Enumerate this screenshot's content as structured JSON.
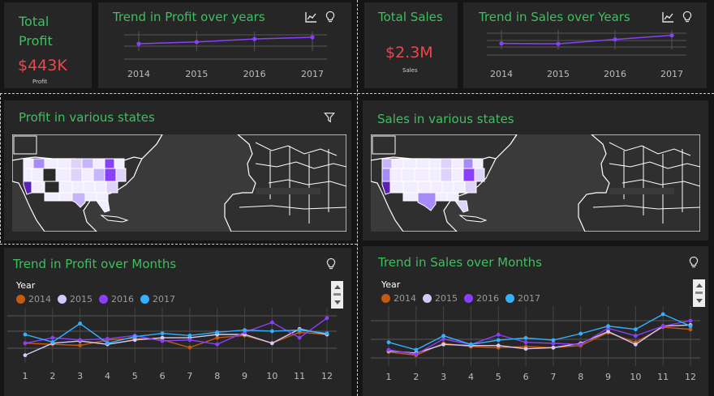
{
  "profit_kpi": {
    "title_line1": "Total",
    "title_line2": "Profit",
    "value": "$443K",
    "sub": "Profit"
  },
  "sales_kpi": {
    "title": "Total Sales",
    "value": "$2.3M",
    "sub": "Sales"
  },
  "profit_years": {
    "title": "Trend in Profit over years",
    "icons": [
      "line-chart-icon",
      "lightbulb-icon"
    ],
    "chart_data": {
      "type": "line",
      "categories": [
        "2014",
        "2015",
        "2016",
        "2017"
      ],
      "values": [
        49.5,
        61.6,
        81.8,
        93.4
      ],
      "color": "#8a3ffc"
    }
  },
  "sales_years": {
    "title": "Trend in Sales over Years",
    "icons": [
      "line-chart-icon",
      "lightbulb-icon"
    ],
    "chart_data": {
      "type": "line",
      "categories": [
        "2014",
        "2015",
        "2016",
        "2017"
      ],
      "values": [
        484,
        471,
        609,
        733
      ],
      "color": "#8a3ffc"
    }
  },
  "profit_states": {
    "title": "Profit in various states",
    "icons": [
      "filter-icon"
    ]
  },
  "sales_states": {
    "title": "Sales in various states"
  },
  "profit_months": {
    "title": "Trend in Profit over Months",
    "icons": [
      "lightbulb-icon"
    ],
    "legend_title": "Year",
    "chart_data": {
      "type": "line",
      "categories": [
        "1",
        "2",
        "3",
        "4",
        "5",
        "6",
        "7",
        "8",
        "9",
        "10",
        "11",
        "12"
      ],
      "series": [
        {
          "name": "2014",
          "color": "#c55a11",
          "values": [
            24,
            22,
            20,
            30,
            33,
            30,
            16,
            34,
            38,
            24,
            44,
            40
          ]
        },
        {
          "name": "2015",
          "color": "#d6c8f7",
          "values": [
            2,
            24,
            28,
            22,
            30,
            34,
            34,
            40,
            40,
            24,
            50,
            40
          ]
        },
        {
          "name": "2016",
          "color": "#8a3ffc",
          "values": [
            24,
            34,
            30,
            32,
            38,
            28,
            30,
            22,
            44,
            62,
            34,
            70
          ]
        },
        {
          "name": "2017",
          "color": "#33b1ff",
          "values": [
            40,
            26,
            60,
            24,
            36,
            42,
            38,
            44,
            48,
            46,
            48,
            42
          ]
        }
      ]
    }
  },
  "sales_months": {
    "title": "Trend in Sales over Months",
    "icons": [
      "lightbulb-icon"
    ],
    "legend_title": "Year",
    "chart_data": {
      "type": "line",
      "categories": [
        "1",
        "2",
        "3",
        "4",
        "5",
        "6",
        "7",
        "8",
        "9",
        "10",
        "11",
        "12"
      ],
      "series": [
        {
          "name": "2014",
          "color": "#c55a11",
          "values": [
            14,
            8,
            30,
            24,
            22,
            24,
            22,
            26,
            50,
            32,
            60,
            56
          ]
        },
        {
          "name": "2015",
          "color": "#d6c8f7",
          "values": [
            16,
            12,
            28,
            26,
            26,
            20,
            22,
            30,
            52,
            28,
            62,
            64
          ]
        },
        {
          "name": "2016",
          "color": "#8a3ffc",
          "values": [
            18,
            10,
            38,
            28,
            46,
            32,
            30,
            28,
            58,
            44,
            62,
            72
          ]
        },
        {
          "name": "2017",
          "color": "#33b1ff",
          "values": [
            32,
            18,
            44,
            28,
            36,
            40,
            36,
            48,
            62,
            56,
            84,
            62
          ]
        }
      ]
    }
  }
}
